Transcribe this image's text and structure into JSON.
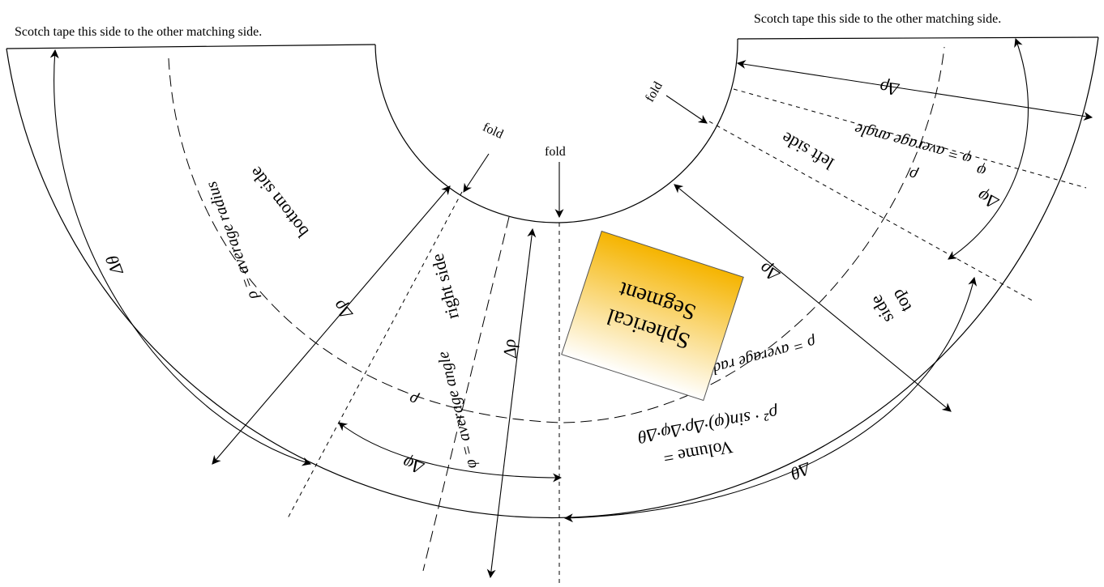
{
  "tape_note_left": "Scotch tape this side to the other matching side.",
  "tape_note_right": "Scotch tape this side to the other matching side.",
  "fold_labels": [
    "fold",
    "fold",
    "fold"
  ],
  "side_labels": {
    "bottom": "bottom side",
    "right": "right side",
    "left": "left side",
    "top_line1": "top",
    "top_line2": "side"
  },
  "radius_labels": {
    "bottom": "ρ = average radius",
    "main": "ρ = average radius"
  },
  "angle_labels": {
    "right": "φ = average angle",
    "left": "φ = average angle"
  },
  "symbols": {
    "delta_theta": "Δθ",
    "delta_rho": "Δρ",
    "delta_phi": "Δφ",
    "rho": "ρ",
    "phi": "φ"
  },
  "title_box": {
    "line1": "Spherical",
    "line2": "Segment",
    "gradient_top": "#ffffff",
    "gradient_bottom": "#f5b400"
  },
  "volume_formula": {
    "line1": "Volume =",
    "line2": "ρ² · sin(φ)·Δρ·Δφ·Δθ"
  }
}
